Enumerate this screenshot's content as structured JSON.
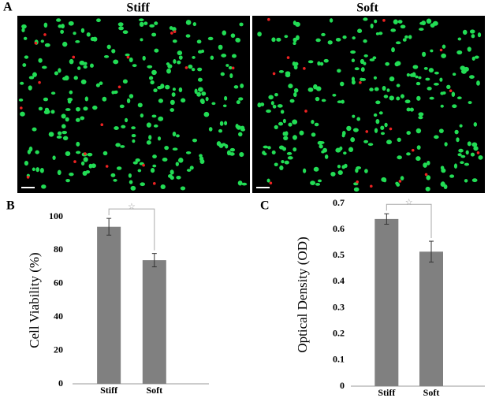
{
  "figure": {
    "panel_label": "A",
    "images": [
      {
        "title": "Stiff"
      },
      {
        "title": "Soft"
      }
    ]
  },
  "chart_data": [
    {
      "type": "bar",
      "panel_label": "B",
      "ylabel": "Cell Viability (%)",
      "categories": [
        "Stiff",
        "Soft"
      ],
      "values": [
        94,
        74
      ],
      "errors": [
        5,
        4
      ],
      "color": "#808080",
      "ylim": [
        0,
        100
      ],
      "yticks": [
        0,
        20,
        40,
        60,
        80,
        100
      ],
      "annotation": "☆"
    },
    {
      "type": "bar",
      "panel_label": "C",
      "ylabel": "Optical Density (OD)",
      "categories": [
        "Stiff",
        "Soft"
      ],
      "values": [
        0.64,
        0.515
      ],
      "errors": [
        0.02,
        0.04
      ],
      "color": "#808080",
      "ylim": [
        0,
        0.7
      ],
      "yticks": [
        0,
        0.1,
        0.2,
        0.3,
        0.4,
        0.5,
        0.6,
        0.7
      ],
      "annotation": "☆"
    }
  ]
}
